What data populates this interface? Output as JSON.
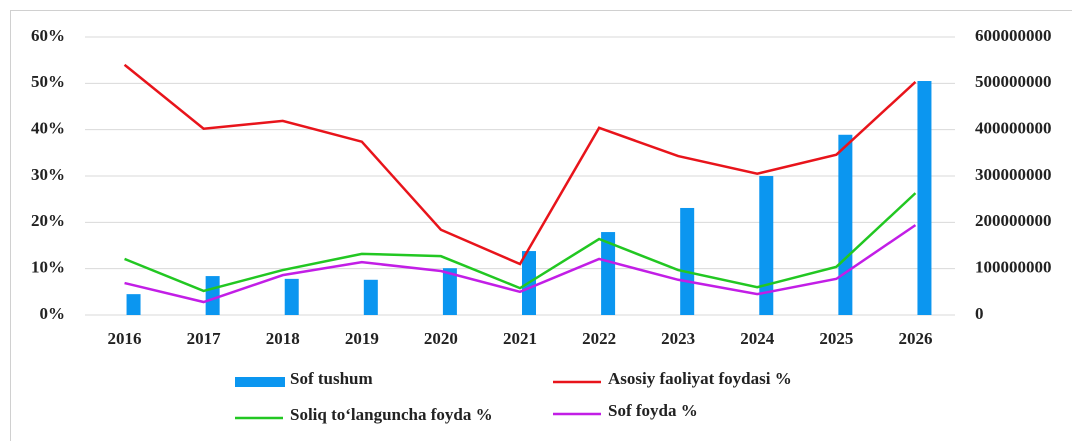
{
  "chart_data": {
    "type": "bar",
    "categories": [
      "2016",
      "2017",
      "2018",
      "2019",
      "2020",
      "2021",
      "2022",
      "2023",
      "2024",
      "2025",
      "2026"
    ],
    "ylim": [
      0,
      60
    ],
    "yticks": [
      {
        "value": 0,
        "label": "0%"
      },
      {
        "value": 10,
        "label": "10%"
      },
      {
        "value": 20,
        "label": "20%"
      },
      {
        "value": 30,
        "label": "30%"
      },
      {
        "value": 40,
        "label": "40%"
      },
      {
        "value": 50,
        "label": "50%"
      },
      {
        "value": 60,
        "label": "60%"
      }
    ],
    "y2lim": [
      0,
      600000000
    ],
    "y2ticks": [
      0,
      100000000,
      200000000,
      300000000,
      400000000,
      500000000,
      600000000
    ],
    "grid": true,
    "legend": "bottom",
    "series": [
      {
        "name": "Sof tushum",
        "type": "bar",
        "axis": "y2",
        "color": "#0b96f0",
        "values": [
          45000000,
          84000000,
          78000000,
          76000000,
          101000000,
          138000000,
          179000000,
          231000000,
          300000000,
          389000000,
          505000000
        ]
      },
      {
        "name": "Asosiy faoliyat foydasi %",
        "type": "line",
        "color": "#e8141b",
        "values": [
          54.0,
          40.2,
          41.9,
          37.4,
          18.4,
          11.0,
          40.4,
          34.3,
          30.5,
          34.6,
          50.3
        ]
      },
      {
        "name": "Soliq to‘languncha foyda %",
        "type": "line",
        "color": "#22c722",
        "values": [
          12.1,
          5.2,
          9.7,
          13.2,
          12.7,
          5.8,
          16.4,
          9.7,
          6.0,
          10.4,
          26.3
        ]
      },
      {
        "name": "Sof foyda %",
        "type": "line",
        "color": "#c21ee6",
        "values": [
          6.9,
          2.8,
          8.6,
          11.4,
          9.5,
          5.0,
          12.1,
          7.6,
          4.5,
          7.8,
          19.4
        ]
      }
    ]
  }
}
